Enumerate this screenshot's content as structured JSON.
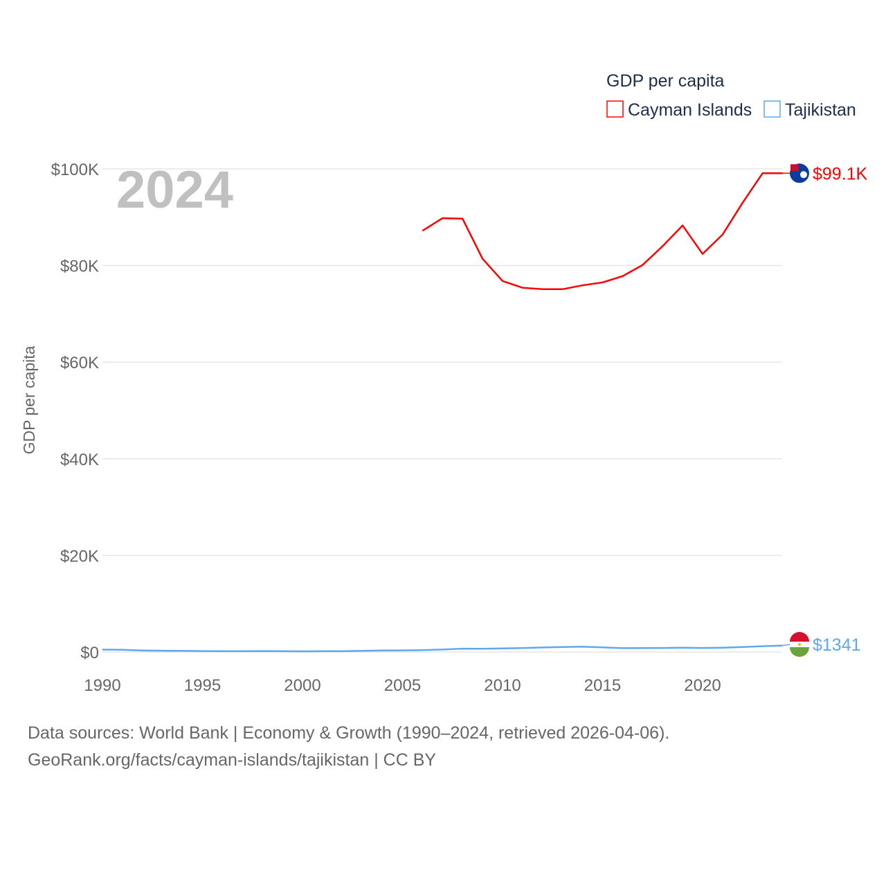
{
  "chart_data": {
    "type": "line",
    "title": "GDP per capita",
    "ylabel": "GDP per capita",
    "year_label": "2024",
    "xlim": [
      1990,
      2024
    ],
    "ylim": [
      0,
      100000
    ],
    "x_ticks": [
      1990,
      1995,
      2000,
      2005,
      2010,
      2015,
      2020
    ],
    "y_ticks": [
      {
        "v": 0,
        "label": "$0"
      },
      {
        "v": 20000,
        "label": "$20K"
      },
      {
        "v": 40000,
        "label": "$40K"
      },
      {
        "v": 60000,
        "label": "$60K"
      },
      {
        "v": 80000,
        "label": "$80K"
      },
      {
        "v": 100000,
        "label": "$100K"
      }
    ],
    "legend_placement": "top-right",
    "series": [
      {
        "name": "Cayman Islands",
        "color": "#ff0000",
        "end_label": "$99.1K",
        "flag": "cayman-islands-flag",
        "x": [
          2006,
          2007,
          2008,
          2009,
          2010,
          2011,
          2012,
          2013,
          2014,
          2015,
          2016,
          2017,
          2018,
          2019,
          2020,
          2021,
          2022,
          2023,
          2024
        ],
        "values": [
          87200,
          89800,
          89700,
          81400,
          76800,
          75400,
          75100,
          75100,
          75900,
          76500,
          77800,
          80100,
          84000,
          88300,
          82400,
          86400,
          93000,
          99100,
          99100
        ]
      },
      {
        "name": "Tajikistan",
        "color": "#5fa8f0",
        "end_label": "$1341",
        "flag": "tajikistan-flag",
        "x": [
          1990,
          1991,
          1992,
          1993,
          1994,
          1995,
          1996,
          1997,
          1998,
          1999,
          2000,
          2001,
          2002,
          2003,
          2004,
          2005,
          2006,
          2007,
          2008,
          2009,
          2010,
          2011,
          2012,
          2013,
          2014,
          2015,
          2016,
          2017,
          2018,
          2019,
          2020,
          2021,
          2022,
          2023,
          2024
        ],
        "values": [
          500,
          470,
          330,
          270,
          240,
          200,
          180,
          170,
          200,
          190,
          140,
          170,
          190,
          240,
          310,
          340,
          400,
          520,
          700,
          670,
          740,
          830,
          950,
          1040,
          1100,
          960,
          800,
          830,
          850,
          890,
          850,
          900,
          1050,
          1200,
          1341
        ]
      }
    ]
  },
  "footer": {
    "line1": "Data sources: World Bank | Economy & Growth (1990–2024, retrieved 2026-04-06).",
    "line2": "GeoRank.org/facts/cayman-islands/tajikistan | CC BY"
  }
}
